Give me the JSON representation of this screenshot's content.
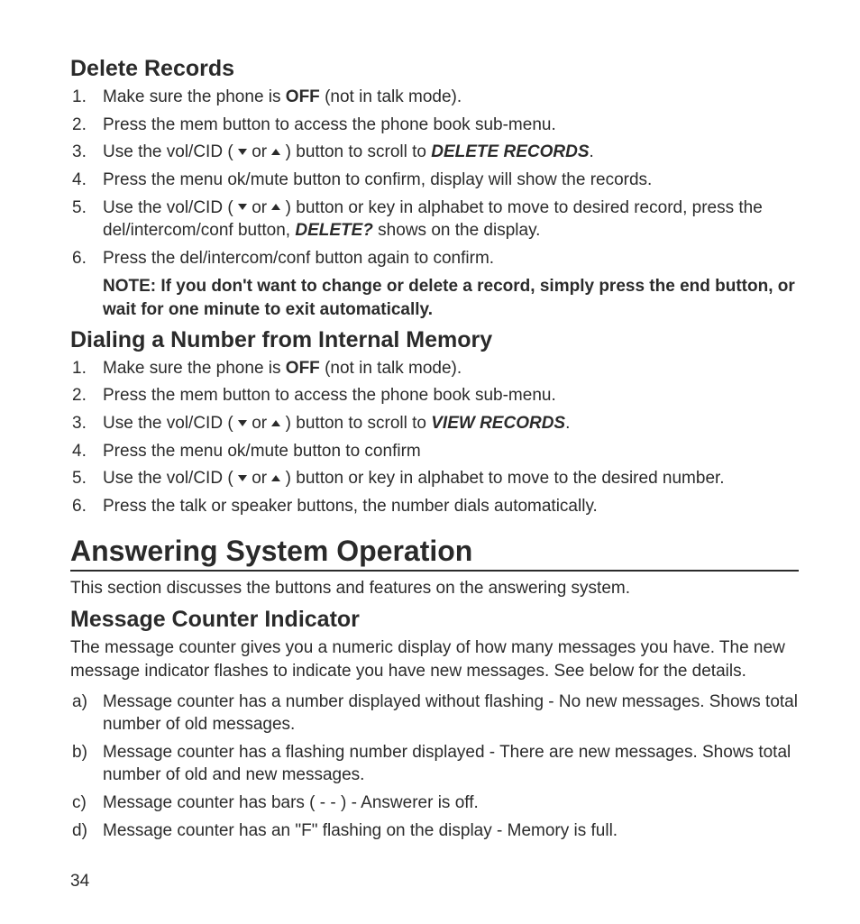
{
  "page_number": "34",
  "colors": {
    "text": "#2b2b2b",
    "background": "#ffffff",
    "rule": "#2b2b2b"
  },
  "typography": {
    "body_pt": 19,
    "h2_pt": 25,
    "h1_pt": 32,
    "font_family": "Segoe UI / Helvetica-like sans"
  },
  "sections": {
    "delete_records": {
      "title": "Delete Records",
      "items": [
        {
          "n": "1.",
          "pre": "Make sure the phone is ",
          "bold": "OFF",
          "post": " (not in talk mode)."
        },
        {
          "n": "2.",
          "text": "Press the mem button to access the phone book sub-menu."
        },
        {
          "n": "3.",
          "pre": "Use the vol/CID ( ",
          "arrows": true,
          "mid": " )  button to scroll to ",
          "bolditalic": "DELETE RECORDS",
          "post": "."
        },
        {
          "n": "4.",
          "text": "Press the menu ok/mute  button to confirm, display will show the records."
        },
        {
          "n": "5.",
          "pre": "Use the vol/CID ( ",
          "arrows": true,
          "mid2": " )  button or key in alphabet to move to desired record, press the del/intercom/conf button, ",
          "bolditalic": "DELETE?",
          "post": " shows on the display."
        },
        {
          "n": "6.",
          "text": "Press the del/intercom/conf button again to confirm."
        }
      ],
      "note": "NOTE: If you don't want to change or delete a record, simply press the end button, or wait for one minute to exit automatically."
    },
    "dialing": {
      "title": "Dialing a Number from Internal Memory",
      "items": [
        {
          "n": "1.",
          "pre": "Make sure the phone is ",
          "bold": "OFF",
          "post": " (not in talk mode)."
        },
        {
          "n": "2.",
          "text": "Press the mem button to access the phone book sub-menu."
        },
        {
          "n": "3.",
          "pre": "Use the vol/CID ( ",
          "arrows": true,
          "mid": " )  button to scroll to  ",
          "bolditalic": "VIEW RECORDS",
          "post": "."
        },
        {
          "n": "4.",
          "text": "Press the menu ok/mute  button to confirm"
        },
        {
          "n": "5.",
          "pre": "Use the vol/CID ( ",
          "arrows": true,
          "mid": " )  button or key in alphabet to move to the desired number."
        },
        {
          "n": "6.",
          "text": "Press the talk or speaker buttons, the number dials automatically."
        }
      ]
    },
    "answering": {
      "title": "Answering System Operation",
      "intro": "This section discusses the buttons and features on the answering system."
    },
    "mci": {
      "title": "Message Counter Indicator",
      "intro": "The message counter gives you a numeric display of how many messages you have. The new message indicator flashes to indicate you have new messages. See below for the details.",
      "items": [
        {
          "n": "a)",
          "text": "Message counter has a number displayed without flashing - No new messages. Shows total number of old messages."
        },
        {
          "n": "b)",
          "text": "Message counter has a flashing number displayed - There are new messages. Shows total number of old and new messages."
        },
        {
          "n": "c)",
          "text": "Message counter has bars ( - - ) - Answerer is off."
        },
        {
          "n": "d)",
          "text": "Message counter has an \"F\" flashing on the display - Memory is full."
        }
      ]
    }
  },
  "arrows_or": " or "
}
